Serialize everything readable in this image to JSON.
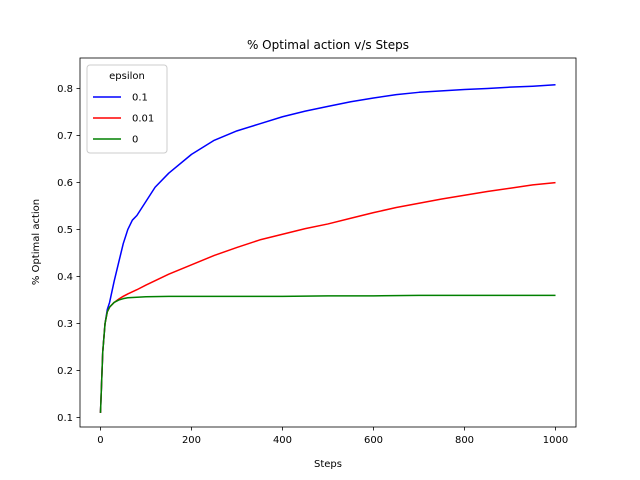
{
  "chart_data": {
    "type": "line",
    "title": "% Optimal action v/s Steps",
    "xlabel": "Steps",
    "ylabel": "% Optimal action",
    "xlim": [
      -45,
      1045
    ],
    "ylim": [
      0.08,
      0.865
    ],
    "xticks": [
      0,
      200,
      400,
      600,
      800,
      1000
    ],
    "yticks": [
      0.1,
      0.2,
      0.3,
      0.4,
      0.5,
      0.6,
      0.7,
      0.8
    ],
    "grid": false,
    "legend": {
      "title": "epsilon",
      "placement": "top-left"
    },
    "series": [
      {
        "name": "0.1",
        "color": "#0000ff",
        "x": [
          0,
          5,
          10,
          15,
          20,
          30,
          40,
          50,
          60,
          70,
          80,
          100,
          120,
          150,
          200,
          250,
          300,
          350,
          400,
          450,
          500,
          550,
          600,
          650,
          700,
          750,
          800,
          850,
          900,
          950,
          1000
        ],
        "y": [
          0.11,
          0.24,
          0.3,
          0.33,
          0.345,
          0.39,
          0.43,
          0.47,
          0.5,
          0.52,
          0.53,
          0.56,
          0.59,
          0.62,
          0.66,
          0.69,
          0.71,
          0.725,
          0.74,
          0.752,
          0.762,
          0.772,
          0.78,
          0.787,
          0.792,
          0.795,
          0.798,
          0.8,
          0.803,
          0.805,
          0.808
        ]
      },
      {
        "name": "0.01",
        "color": "#ff0000",
        "x": [
          0,
          5,
          10,
          15,
          20,
          30,
          40,
          50,
          60,
          80,
          100,
          150,
          200,
          250,
          300,
          350,
          400,
          450,
          500,
          550,
          600,
          650,
          700,
          750,
          800,
          850,
          900,
          950,
          1000
        ],
        "y": [
          0.11,
          0.24,
          0.3,
          0.325,
          0.335,
          0.345,
          0.352,
          0.358,
          0.363,
          0.372,
          0.382,
          0.405,
          0.425,
          0.445,
          0.462,
          0.478,
          0.49,
          0.502,
          0.512,
          0.524,
          0.536,
          0.547,
          0.556,
          0.565,
          0.573,
          0.581,
          0.588,
          0.595,
          0.6
        ]
      },
      {
        "name": "0",
        "color": "#008000",
        "x": [
          0,
          5,
          10,
          15,
          20,
          30,
          40,
          50,
          60,
          80,
          100,
          150,
          200,
          300,
          400,
          500,
          600,
          700,
          800,
          900,
          1000
        ],
        "y": [
          0.11,
          0.24,
          0.3,
          0.325,
          0.335,
          0.345,
          0.35,
          0.353,
          0.355,
          0.356,
          0.357,
          0.358,
          0.358,
          0.358,
          0.358,
          0.359,
          0.359,
          0.36,
          0.36,
          0.36,
          0.36
        ]
      }
    ]
  }
}
